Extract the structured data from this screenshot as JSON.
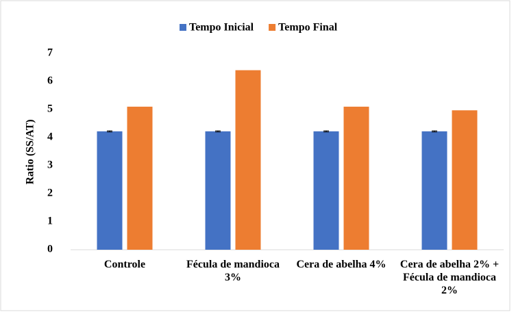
{
  "chart_data": {
    "type": "bar",
    "y_label": "Ratio (SS/AT)",
    "categories": [
      "Controle",
      "Fécula de mandioca 3%",
      "Cera de abelha 4%",
      "Cera de abelha 2% + Fécula de mandioca 2%"
    ],
    "series": [
      {
        "name": "Tempo Inicial",
        "color": "#4472c4",
        "values": [
          4.22,
          4.22,
          4.22,
          4.22
        ],
        "errors": [
          0.02,
          0.02,
          0.02,
          0.02
        ]
      },
      {
        "name": "Tempo Final",
        "color": "#ed7d31",
        "values": [
          5.1,
          6.4,
          5.1,
          4.97
        ]
      }
    ],
    "ylim": [
      0,
      7
    ],
    "yticks": [
      0,
      1,
      2,
      3,
      4,
      5,
      6,
      7
    ],
    "grid": false,
    "legend": "top"
  }
}
